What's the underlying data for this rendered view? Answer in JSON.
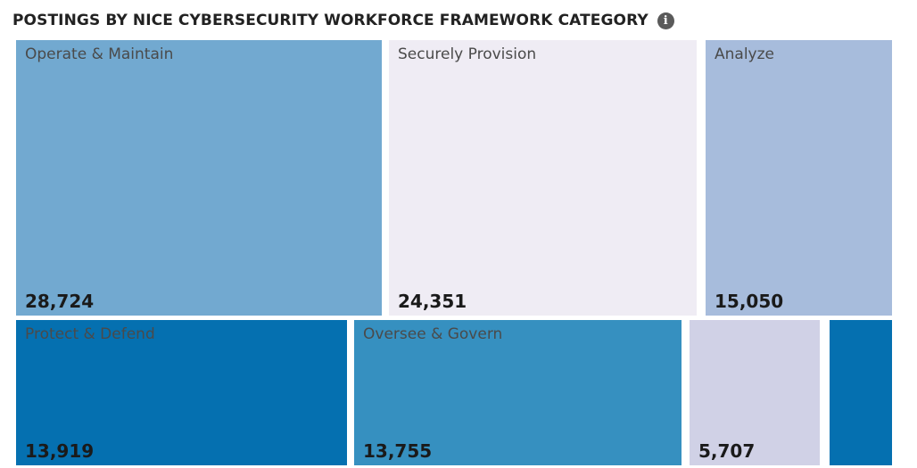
{
  "header": {
    "title": "POSTINGS BY NICE CYBERSECURITY WORKFORCE FRAMEWORK CATEGORY",
    "info_icon": "info-circle-icon"
  },
  "chart_data": {
    "type": "treemap",
    "title": "POSTINGS BY NICE CYBERSECURITY WORKFORCE FRAMEWORK CATEGORY",
    "items": [
      {
        "label": "Operate & Maintain",
        "value": 28724,
        "display": "28,724",
        "color": "#72a9d0"
      },
      {
        "label": "Securely Provision",
        "value": 24351,
        "display": "24,351",
        "color": "#efecf4"
      },
      {
        "label": "Analyze",
        "value": 15050,
        "display": "15,050",
        "color": "#a7bcdc"
      },
      {
        "label": "Protect & Defend",
        "value": 13919,
        "display": "13,919",
        "color": "#0570b0"
      },
      {
        "label": "Oversee & Govern",
        "value": 13755,
        "display": "13,755",
        "color": "#3690c0"
      },
      {
        "label": "",
        "value": 5707,
        "display": "5,707",
        "color": "#d0d1e6"
      },
      {
        "label": "",
        "value": null,
        "display": "",
        "color": "#0570b0"
      }
    ]
  }
}
